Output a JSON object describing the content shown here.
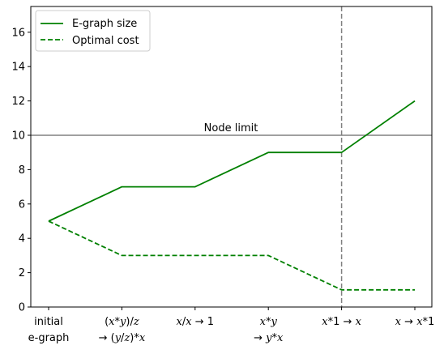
{
  "chart_data": {
    "type": "line",
    "categories": [
      [
        "initial",
        "e-graph"
      ],
      [
        "(x*y)/z",
        "→ (y/z)*x"
      ],
      [
        "x/x → 1"
      ],
      [
        "x*y",
        "→ y*x"
      ],
      [
        "x*1 → x"
      ],
      [
        "x → x*1"
      ]
    ],
    "series": [
      {
        "name": "E-graph size",
        "values": [
          5,
          7,
          7,
          9,
          9,
          12
        ],
        "color": "#008000",
        "style": "solid"
      },
      {
        "name": "Optimal cost",
        "values": [
          5,
          3,
          3,
          3,
          1,
          1
        ],
        "color": "#008000",
        "style": "dashed"
      }
    ],
    "ylim": [
      0,
      17.5
    ],
    "yticks": [
      "0",
      "2",
      "4",
      "6",
      "8",
      "10",
      "12",
      "14",
      "16"
    ],
    "hline": {
      "value": 10,
      "label": "Node limit",
      "color": "#808080"
    },
    "vline": {
      "category_index": 4,
      "color": "#808080",
      "style": "dashed"
    },
    "legend": "top-left",
    "grid": false
  }
}
